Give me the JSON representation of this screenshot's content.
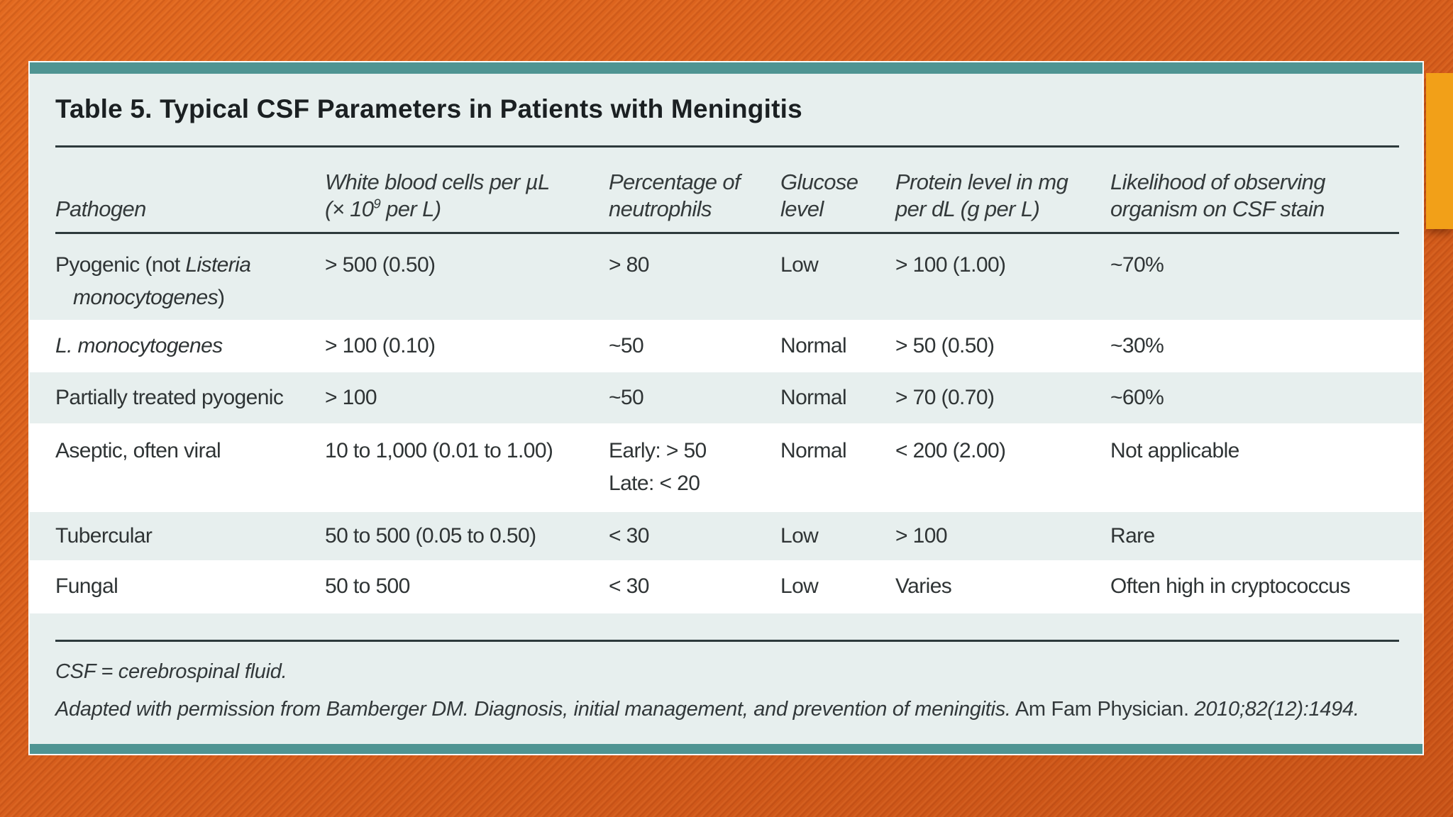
{
  "colors": {
    "background_orange": "#d75e1c",
    "accent_amber": "#f2a018",
    "teal_bar": "#4f9492",
    "card_background": "#e7efee",
    "alternate_row_white": "#ffffff",
    "rule_dark": "#2d3a3c",
    "text_dark": "#2f3435"
  },
  "title": "Table 5. Typical CSF Parameters in Patients with Meningitis",
  "header": {
    "pathogen": "Pathogen",
    "wbc_line1": "White blood cells per µL",
    "wbc_line2_pre": "(× 10",
    "wbc_line2_sup": "9",
    "wbc_line2_post": " per L)",
    "neutrophils_line1": "Percentage of",
    "neutrophils_line2": "neutrophils",
    "glucose_line1": "Glucose",
    "glucose_line2": "level",
    "protein_line1": "Protein level in mg",
    "protein_line2": "per dL (g per L)",
    "stain_line1": "Likelihood of observing",
    "stain_line2": "organism on CSF stain"
  },
  "rows": [
    {
      "pathogen_pre": "Pyogenic (not ",
      "pathogen_italic": "Listeria",
      "pathogen_line2_italic": "monocytogenes",
      "pathogen_line2_end": ")",
      "wbc": "> 500 (0.50)",
      "neutrophils": "> 80",
      "glucose": "Low",
      "protein": "> 100 (1.00)",
      "stain": "~70%"
    },
    {
      "pathogen_italic": "L. monocytogenes",
      "wbc": "> 100 (0.10)",
      "neutrophils": "~50",
      "glucose": "Normal",
      "protein": "> 50 (0.50)",
      "stain": "~30%"
    },
    {
      "pathogen": "Partially treated pyogenic",
      "wbc": "> 100",
      "neutrophils": "~50",
      "glucose": "Normal",
      "protein": "> 70 (0.70)",
      "stain": "~60%"
    },
    {
      "pathogen": "Aseptic, often viral",
      "wbc": "10 to 1,000 (0.01 to 1.00)",
      "neutrophils_line1": "Early: > 50",
      "neutrophils_line2": "Late: < 20",
      "glucose": "Normal",
      "protein": "< 200 (2.00)",
      "stain": "Not applicable"
    },
    {
      "pathogen": "Tubercular",
      "wbc": "50 to 500 (0.05 to 0.50)",
      "neutrophils": "< 30",
      "glucose": "Low",
      "protein": "> 100",
      "stain": "Rare"
    },
    {
      "pathogen": "Fungal",
      "wbc": "50 to 500",
      "neutrophils": "< 30",
      "glucose": "Low",
      "protein": "Varies",
      "stain": "Often high in cryptococcus"
    }
  ],
  "footnotes": {
    "abbreviation": "CSF = cerebrospinal fluid.",
    "credit_italic_1": "Adapted with permission from Bamberger DM. Diagnosis, initial management, and prevention of meningitis.",
    "credit_roman": " Am Fam Physician. ",
    "credit_italic_2": "2010;82(12):1494."
  }
}
